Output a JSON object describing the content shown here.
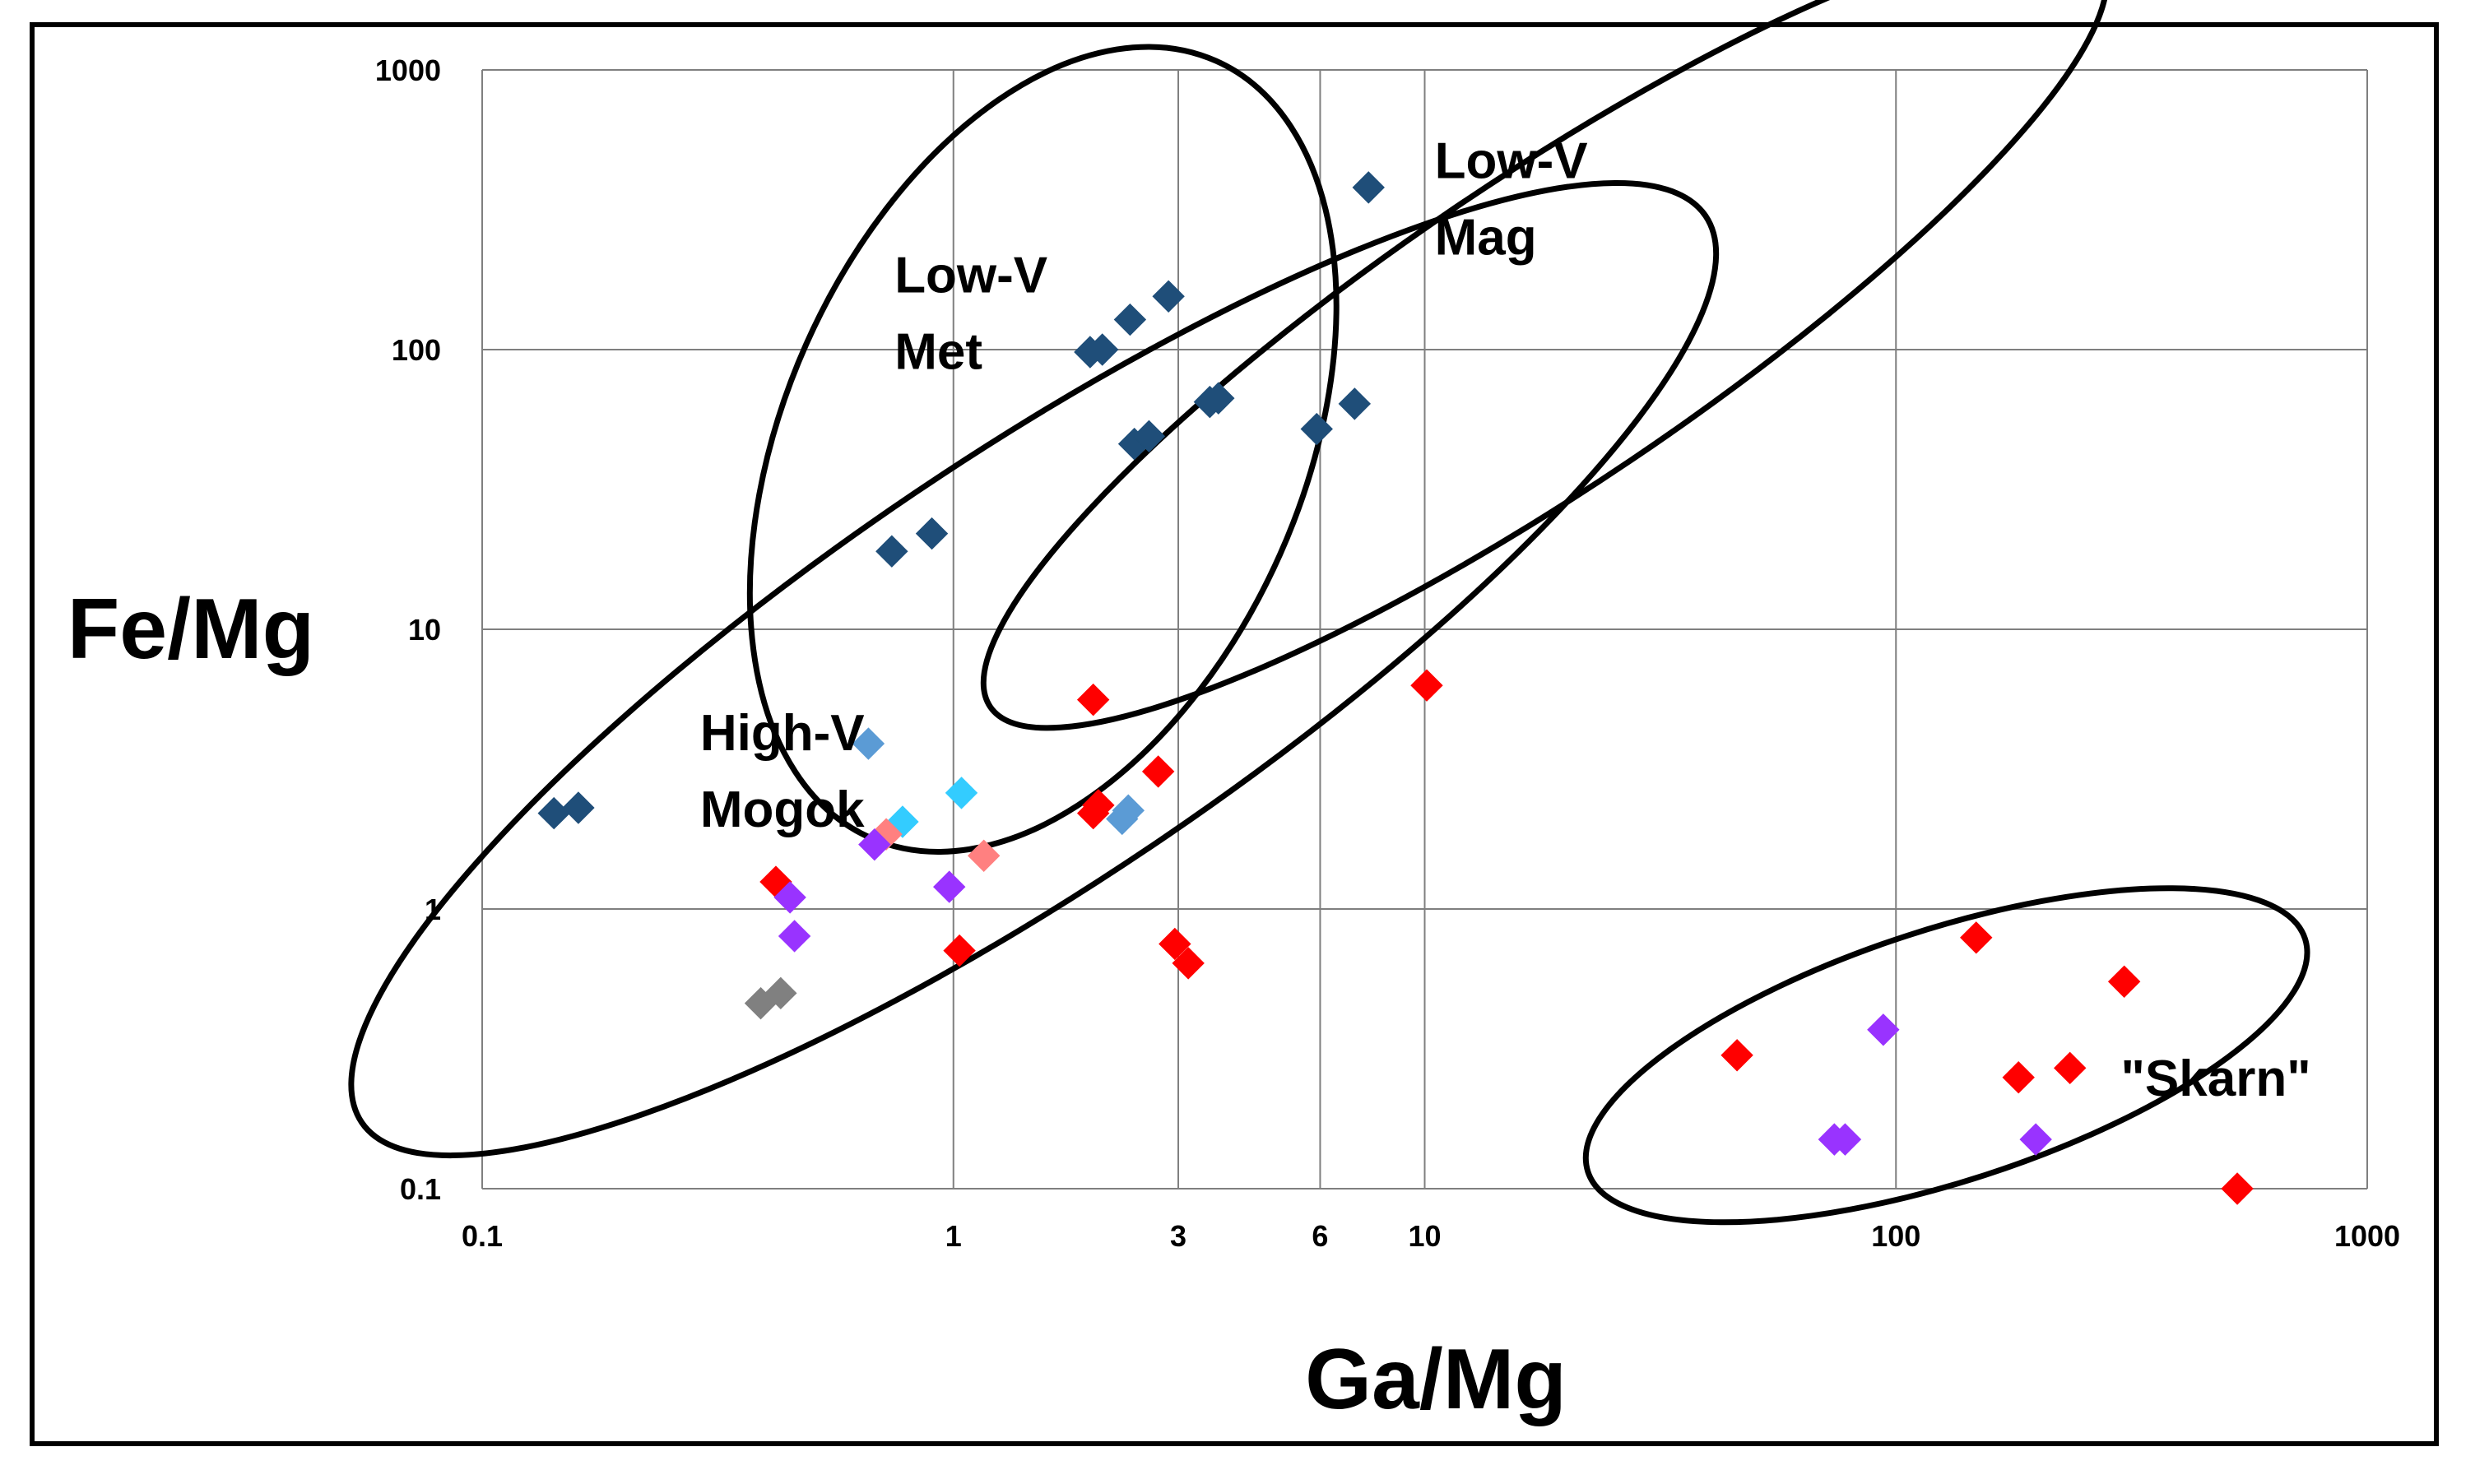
{
  "chart_data": {
    "type": "scatter",
    "title": "",
    "xlabel": "Ga/Mg",
    "ylabel": "Fe/Mg",
    "x_scale": "log",
    "y_scale": "log",
    "xlim": [
      0.1,
      1000
    ],
    "ylim": [
      0.1,
      1000
    ],
    "grid": true,
    "x_ticks": [
      {
        "value": 0.1,
        "label": "0.1"
      },
      {
        "value": 1,
        "label": "1"
      },
      {
        "value": 3,
        "label": "3"
      },
      {
        "value": 6,
        "label": "6"
      },
      {
        "value": 10,
        "label": "10"
      },
      {
        "value": 100,
        "label": "100"
      },
      {
        "value": 1000,
        "label": "1000"
      }
    ],
    "y_ticks": [
      {
        "value": 0.1,
        "label": "0.1"
      },
      {
        "value": 1,
        "label": "1"
      },
      {
        "value": 10,
        "label": "10"
      },
      {
        "value": 100,
        "label": "100"
      },
      {
        "value": 1000,
        "label": "1000"
      }
    ],
    "series": [
      {
        "name": "dark-blue",
        "color": "#1f4e79",
        "points": [
          [
            0.142,
            2.2
          ],
          [
            0.16,
            2.3
          ],
          [
            0.74,
            19
          ],
          [
            0.9,
            22
          ],
          [
            1.95,
            98
          ],
          [
            2.07,
            100
          ],
          [
            2.37,
            128
          ],
          [
            2.86,
            155
          ],
          [
            2.42,
            46
          ],
          [
            2.6,
            49
          ],
          [
            3.5,
            65
          ],
          [
            3.65,
            67
          ],
          [
            5.9,
            52
          ],
          [
            7.1,
            64
          ],
          [
            7.6,
            380
          ]
        ]
      },
      {
        "name": "medium-blue",
        "color": "#5b9bd5",
        "points": [
          [
            0.66,
            3.9
          ],
          [
            2.28,
            2.1
          ],
          [
            2.35,
            2.25
          ]
        ]
      },
      {
        "name": "light-blue",
        "color": "#33ccff",
        "points": [
          [
            0.78,
            2.05
          ],
          [
            1.04,
            2.6
          ]
        ]
      },
      {
        "name": "red",
        "color": "#ff0000",
        "points": [
          [
            0.42,
            1.25
          ],
          [
            1.03,
            0.71
          ],
          [
            1.98,
            5.6
          ],
          [
            1.98,
            2.2
          ],
          [
            2.03,
            2.35
          ],
          [
            2.72,
            3.1
          ],
          [
            2.95,
            0.75
          ],
          [
            3.15,
            0.64
          ],
          [
            10.1,
            6.3
          ],
          [
            46,
            0.3
          ],
          [
            148,
            0.79
          ],
          [
            182,
            0.25
          ],
          [
            234,
            0.27
          ],
          [
            305,
            0.55
          ],
          [
            530,
            0.1
          ]
        ]
      },
      {
        "name": "pink",
        "color": "#ff8080",
        "points": [
          [
            0.72,
            1.85
          ],
          [
            1.16,
            1.55
          ]
        ]
      },
      {
        "name": "purple",
        "color": "#9933ff",
        "points": [
          [
            0.45,
            1.1
          ],
          [
            0.46,
            0.8
          ],
          [
            0.68,
            1.7
          ],
          [
            0.98,
            1.2
          ],
          [
            74,
            0.15
          ],
          [
            78,
            0.15
          ],
          [
            94,
            0.37
          ],
          [
            198,
            0.15
          ]
        ]
      },
      {
        "name": "gray",
        "color": "#808080",
        "points": [
          [
            0.39,
            0.46
          ],
          [
            0.43,
            0.5
          ]
        ]
      }
    ],
    "regions": [
      {
        "label_lines": [
          "Low-V",
          "Met"
        ],
        "label_at": [
          0.75,
          160
        ],
        "center": [
          1.55,
          44
        ],
        "rx_decades": 0.55,
        "ry_decades": 1.52,
        "rotation_deg": 24
      },
      {
        "label_lines": [
          "Low-V",
          "Mag"
        ],
        "label_at": [
          10.5,
          410
        ],
        "center": [
          18,
          115
        ],
        "rx_decades": 1.42,
        "ry_decades": 0.55,
        "rotation_deg": -34
      },
      {
        "label_lines": [
          "High-V",
          "Mogok"
        ],
        "label_at": [
          0.29,
          3.7
        ],
        "center": [
          1.48,
          7.2
        ],
        "rx_decades": 1.72,
        "ry_decades": 0.76,
        "rotation_deg": -34
      },
      {
        "label_lines": [
          "\"Skarn\""
        ],
        "label_at": [
          300,
          0.215
        ],
        "center": [
          128,
          0.3
        ],
        "rx_decades": 0.8,
        "ry_decades": 0.45,
        "rotation_deg": -18
      }
    ]
  }
}
